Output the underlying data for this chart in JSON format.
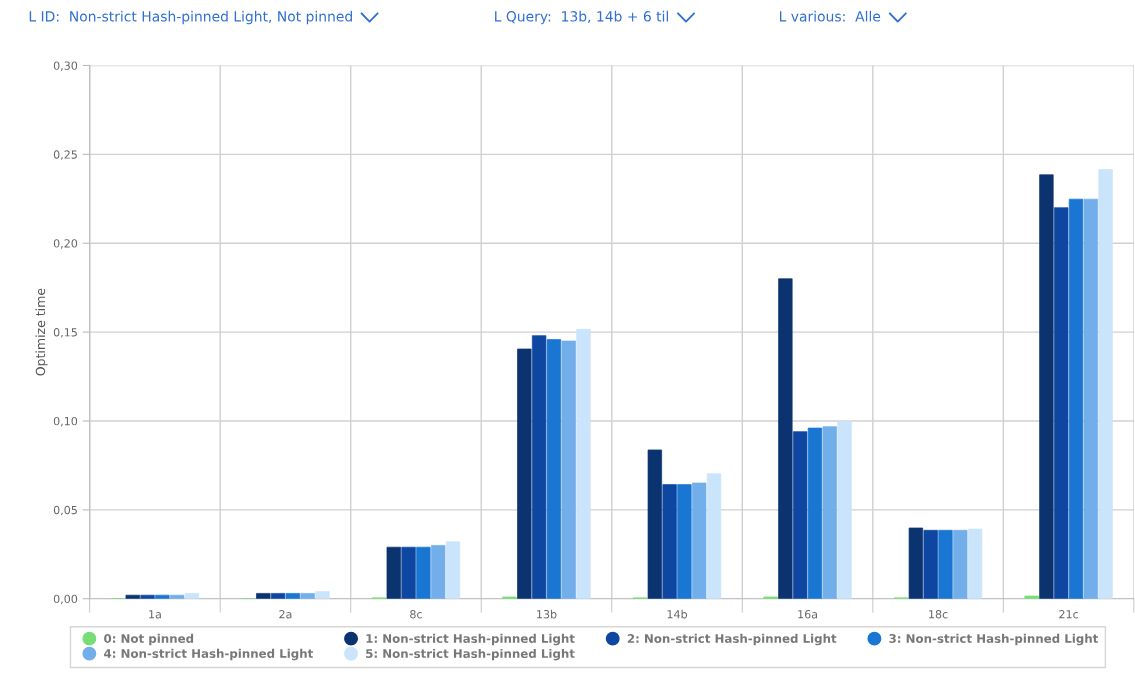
{
  "chart_data": {
    "type": "bar",
    "ylabel": "Optimize time",
    "annotations": [
      "L ID:  Non-strict Hash-pinned Light, Not pinned",
      "L Query:  13b, 14b + 6 til",
      "L various:  Alle"
    ],
    "categories": [
      "1a",
      "2a",
      "8c",
      "13b",
      "14b",
      "16a",
      "18c",
      "21c"
    ],
    "series": [
      {
        "name": "0: Not pinned",
        "color": "#77dd77",
        "values": [
          0,
          0,
          0.0005,
          0.001,
          0.0005,
          0.001,
          0.0005,
          0.0015
        ]
      },
      {
        "name": "1: Non-strict Hash-pinned Light",
        "color": "#0a3370",
        "values": [
          0.002,
          0.003,
          0.029,
          0.1405,
          0.0837,
          0.18,
          0.0398,
          0.2385
        ]
      },
      {
        "name": "2: Non-strict Hash-pinned Light",
        "color": "#0e47a1",
        "values": [
          0.002,
          0.003,
          0.029,
          0.148,
          0.0642,
          0.094,
          0.0385,
          0.22
        ]
      },
      {
        "name": "3: Non-strict Hash-pinned Light",
        "color": "#1976d2",
        "values": [
          0.002,
          0.003,
          0.029,
          0.1458,
          0.0642,
          0.096,
          0.0385,
          0.2248
        ]
      },
      {
        "name": "4: Non-strict Hash-pinned Light",
        "color": "#72aeea",
        "values": [
          0.002,
          0.003,
          0.03,
          0.145,
          0.0651,
          0.0968,
          0.0385,
          0.2248
        ]
      },
      {
        "name": "5: Non-strict Hash-pinned Light",
        "color": "#c9e4fb",
        "values": [
          0.003,
          0.004,
          0.032,
          0.1516,
          0.0703,
          0.0996,
          0.0392,
          0.2415
        ]
      }
    ],
    "ylim": [
      0,
      0.3
    ],
    "yticks": [
      {
        "value": 0,
        "label": "0,00"
      },
      {
        "value": 0.05,
        "label": "0,05"
      },
      {
        "value": 0.1,
        "label": "0,10"
      },
      {
        "value": 0.15,
        "label": "0,15"
      },
      {
        "value": 0.2,
        "label": "0,20"
      },
      {
        "value": 0.25,
        "label": "0,25"
      },
      {
        "value": 0.3,
        "label": "0,30"
      }
    ],
    "grid": true,
    "legend": "bottom"
  }
}
